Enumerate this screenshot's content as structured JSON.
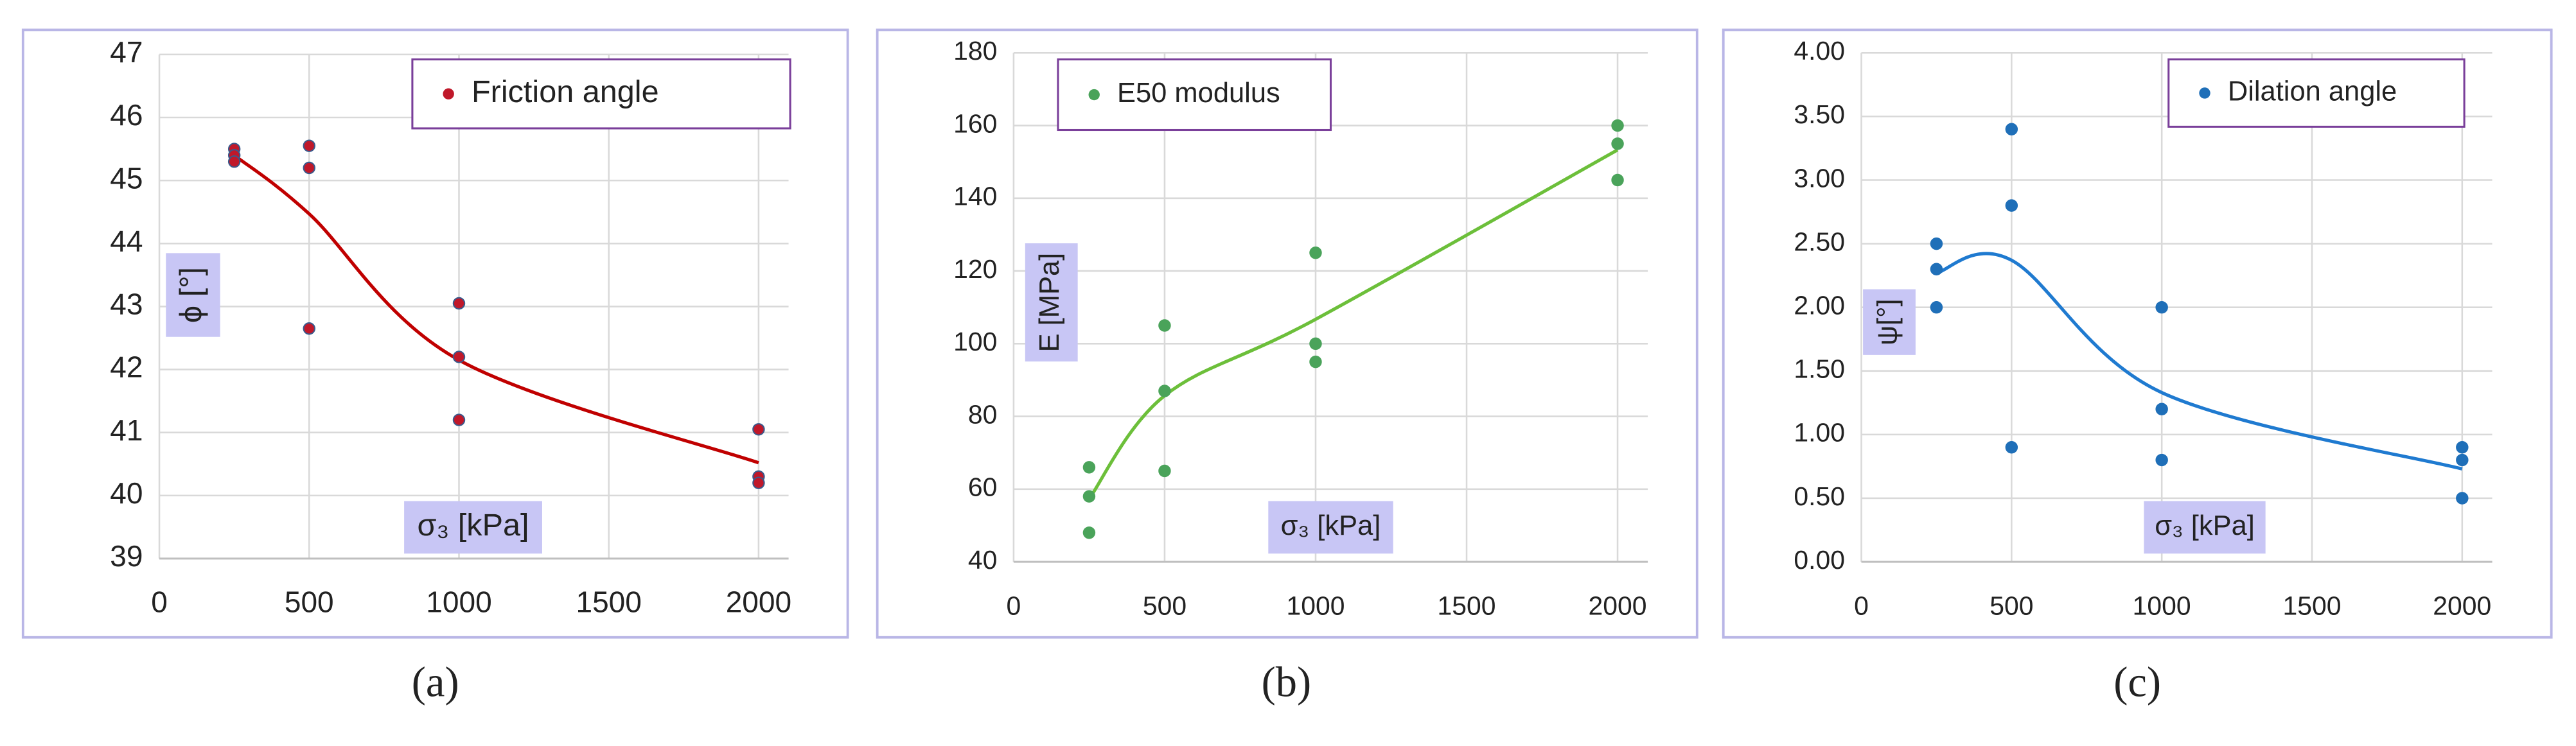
{
  "chart_data": [
    {
      "type": "scatter",
      "label": "(a)",
      "ylabel": "ϕ [°]",
      "xlabel": "σ₃ [kPa]",
      "xlim": [
        0,
        2100
      ],
      "xticks": [
        0,
        500,
        1000,
        1500,
        2000
      ],
      "ylim": [
        39,
        47
      ],
      "yticks": [
        39,
        40,
        41,
        42,
        43,
        44,
        45,
        46,
        47
      ],
      "grid": true,
      "series": [
        {
          "name": "Friction angle",
          "color": "#c0182a",
          "x": [
            250,
            250,
            250,
            500,
            500,
            500,
            1000,
            1000,
            1000,
            2000,
            2000,
            2000
          ],
          "values": [
            45.5,
            45.4,
            45.3,
            45.55,
            45.2,
            42.65,
            43.05,
            42.2,
            41.2,
            41.05,
            40.3,
            40.2
          ]
        }
      ],
      "trend": {
        "color": "#c00000",
        "x": [
          250,
          500,
          1000,
          2000
        ],
        "values": [
          45.4,
          44.47,
          42.15,
          40.52
        ]
      }
    },
    {
      "type": "scatter",
      "label": "(b)",
      "ylabel": "E [MPa]",
      "xlabel": "σ₃ [kPa]",
      "xlim": [
        0,
        2100
      ],
      "xticks": [
        0,
        500,
        1000,
        1500,
        2000
      ],
      "ylim": [
        40,
        180
      ],
      "yticks": [
        40,
        60,
        80,
        100,
        120,
        140,
        160,
        180
      ],
      "grid": true,
      "series": [
        {
          "name": "E50 modulus",
          "color": "#4aa35a",
          "x": [
            250,
            250,
            250,
            500,
            500,
            500,
            1000,
            1000,
            1000,
            2000,
            2000,
            2000
          ],
          "values": [
            66,
            58,
            48,
            105,
            87,
            65,
            125,
            100,
            95,
            160,
            155,
            145
          ]
        }
      ],
      "trend": {
        "color": "#6cbf3a",
        "x": [
          250,
          500,
          1000,
          2000
        ],
        "values": [
          57.3,
          85.7,
          106.7,
          153.3
        ]
      }
    },
    {
      "type": "scatter",
      "label": "(c)",
      "ylabel": "ψ[°]",
      "xlabel": "σ₃ [kPa]",
      "xlim": [
        0,
        2100
      ],
      "xticks": [
        0,
        500,
        1000,
        1500,
        2000
      ],
      "ylim": [
        0,
        4
      ],
      "yticks": [
        {
          "value": 0,
          "label": "0.00"
        },
        {
          "value": 0.5,
          "label": "0.50"
        },
        {
          "value": 1,
          "label": "1.00"
        },
        {
          "value": 1.5,
          "label": "1.50"
        },
        {
          "value": 2,
          "label": "2.00"
        },
        {
          "value": 2.5,
          "label": "2.50"
        },
        {
          "value": 3,
          "label": "3.00"
        },
        {
          "value": 3.5,
          "label": "3.50"
        },
        {
          "value": 4,
          "label": "4.00"
        }
      ],
      "grid": true,
      "series": [
        {
          "name": "Dilation angle",
          "color": "#1f6fb8",
          "x": [
            250,
            250,
            250,
            500,
            500,
            500,
            1000,
            1000,
            1000,
            2000,
            2000,
            2000
          ],
          "values": [
            2.5,
            2.3,
            2.0,
            3.4,
            2.8,
            0.9,
            2.0,
            1.2,
            0.8,
            0.9,
            0.8,
            0.5
          ]
        }
      ],
      "trend": {
        "color": "#1f7ad0",
        "x": [
          250,
          500,
          1000,
          2000
        ],
        "values": [
          2.27,
          2.37,
          1.33,
          0.73
        ]
      }
    }
  ]
}
